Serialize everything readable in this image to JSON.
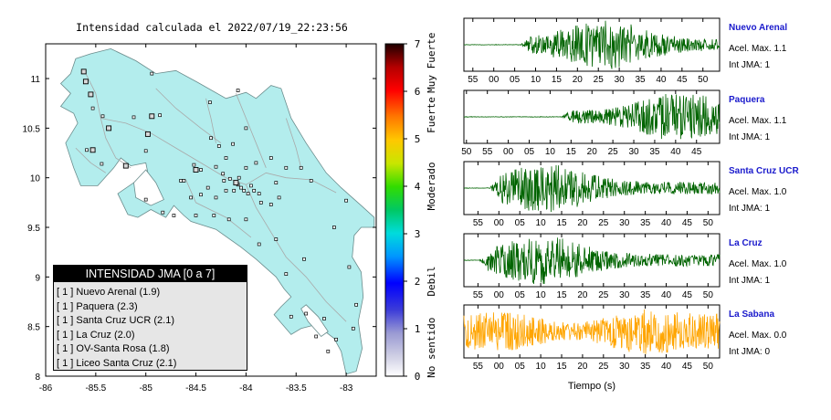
{
  "map_title": "Intensidad calculada el 2022/07/19_22:23:56",
  "map": {
    "lon_ticks": [
      "-86",
      "-85.5",
      "-85",
      "-84.5",
      "-84",
      "-83.5",
      "-83"
    ],
    "lon_values": [
      -86,
      -85.5,
      -85,
      -84.5,
      -84,
      -83.5,
      -83
    ],
    "lat_ticks": [
      "11",
      "10.5",
      "10",
      "9.5",
      "9",
      "8.5",
      "8"
    ],
    "lat_values": [
      11,
      10.5,
      10,
      9.5,
      9,
      8.5,
      8
    ],
    "lon_range": [
      -86.0,
      -82.7
    ],
    "lat_range": [
      8.0,
      11.35
    ],
    "land_color": "#b3eded",
    "road_color": "#a9a9a9",
    "stations": [
      [
        -85.37,
        10.5
      ],
      [
        -85.43,
        10.62
      ],
      [
        -85.53,
        10.7
      ],
      [
        -85.55,
        10.84
      ],
      [
        -85.6,
        10.97
      ],
      [
        -85.62,
        11.07
      ],
      [
        -85.59,
        10.28
      ],
      [
        -85.44,
        10.14
      ],
      [
        -85.2,
        10.12
      ],
      [
        -84.98,
        10.44
      ],
      [
        -85.0,
        10.27
      ],
      [
        -85.12,
        10.61
      ],
      [
        -84.86,
        10.63
      ],
      [
        -84.94,
        11.05
      ],
      [
        -84.35,
        10.4
      ],
      [
        -84.08,
        10.88
      ],
      [
        -84.36,
        10.76
      ],
      [
        -84.0,
        10.5
      ],
      [
        -84.13,
        10.34
      ],
      [
        -84.27,
        10.32
      ],
      [
        -84.3,
        10.11
      ],
      [
        -84.2,
        10.2
      ],
      [
        -84.45,
        10.08
      ],
      [
        -84.52,
        10.13
      ],
      [
        -84.23,
        10.04
      ],
      [
        -84.22,
        9.97
      ],
      [
        -84.2,
        9.87
      ],
      [
        -84.16,
        9.99
      ],
      [
        -84.1,
        9.95
      ],
      [
        -84.08,
        9.93
      ],
      [
        -84.05,
        9.9
      ],
      [
        -84.02,
        9.87
      ],
      [
        -83.98,
        9.84
      ],
      [
        -83.95,
        9.92
      ],
      [
        -84.12,
        9.87
      ],
      [
        -84.07,
        10.0
      ],
      [
        -83.92,
        9.87
      ],
      [
        -83.87,
        9.84
      ],
      [
        -84.0,
        10.1
      ],
      [
        -83.9,
        10.15
      ],
      [
        -83.75,
        10.2
      ],
      [
        -83.6,
        10.1
      ],
      [
        -83.45,
        10.1
      ],
      [
        -83.7,
        9.95
      ],
      [
        -83.67,
        9.8
      ],
      [
        -83.75,
        9.73
      ],
      [
        -83.85,
        9.75
      ],
      [
        -84.3,
        9.8
      ],
      [
        -84.38,
        9.9
      ],
      [
        -84.62,
        9.97
      ],
      [
        -84.55,
        9.8
      ],
      [
        -84.72,
        9.62
      ],
      [
        -84.83,
        9.65
      ],
      [
        -85.0,
        9.78
      ],
      [
        -84.5,
        9.62
      ],
      [
        -84.32,
        9.62
      ],
      [
        -84.17,
        9.58
      ],
      [
        -84.0,
        9.58
      ],
      [
        -83.7,
        9.38
      ],
      [
        -83.87,
        9.33
      ],
      [
        -83.6,
        9.03
      ],
      [
        -83.42,
        9.18
      ],
      [
        -83.55,
        8.6
      ],
      [
        -83.4,
        8.63
      ],
      [
        -83.22,
        8.58
      ],
      [
        -83.3,
        8.4
      ],
      [
        -83.18,
        8.25
      ],
      [
        -83.1,
        8.37
      ],
      [
        -82.93,
        8.48
      ],
      [
        -82.9,
        8.72
      ],
      [
        -82.97,
        9.1
      ],
      [
        -83.12,
        9.5
      ],
      [
        -83.0,
        9.77
      ],
      [
        -83.35,
        9.97
      ],
      [
        -84.65,
        9.97
      ],
      [
        -84.45,
        9.83
      ]
    ],
    "active_stations": [
      [
        -85.62,
        11.07
      ],
      [
        -85.6,
        10.97
      ],
      [
        -84.94,
        10.62
      ],
      [
        -85.55,
        10.84
      ],
      [
        -85.37,
        10.5
      ],
      [
        -85.53,
        10.28
      ],
      [
        -85.2,
        10.12
      ],
      [
        -84.5,
        10.08
      ],
      [
        -84.1,
        9.95
      ],
      [
        -84.98,
        10.44
      ]
    ]
  },
  "colorbar": {
    "tick_labels": [
      "0",
      "1",
      "2",
      "3",
      "4",
      "5",
      "6",
      "7"
    ],
    "tick_values": [
      0,
      1,
      2,
      3,
      4,
      5,
      6,
      7
    ],
    "category_labels": [
      "No sentido",
      "Debil",
      "Moderado",
      "Fuerte",
      "Muy Fuerte"
    ],
    "category_positions": [
      0.6,
      2.0,
      4.0,
      5.5,
      6.6
    ]
  },
  "legend": {
    "header": "INTENSIDAD JMA [0 a 7]",
    "items": [
      "[ 1 ]  Nuevo Arenal (1.9)",
      "[ 1 ]  Paquera (2.3)",
      "[ 1 ]  Santa Cruz UCR (2.1)",
      "[ 1 ]  La Cruz (2.0)",
      "[ 1 ]  OV-Santa Rosa (1.8)",
      "[ 1 ]  Liceo Santa Cruz (2.1)"
    ]
  },
  "waveforms": {
    "x_axis_label": "Tiempo (s)",
    "panels": [
      {
        "station": "Nuevo Arenal",
        "accel": "Acel. Max. 1.1",
        "jma": "Int JMA: 1",
        "color": "#006400",
        "ticks": [
          "55",
          "00",
          "05",
          "10",
          "15",
          "20",
          "25",
          "30",
          "35",
          "40",
          "45",
          "50"
        ],
        "tick_start": 0.035,
        "tick_step": 0.0818,
        "onset": 0.22,
        "peak": 0.55
      },
      {
        "station": "Paquera",
        "accel": "Acel. Max. 1.1",
        "jma": "Int JMA: 1",
        "color": "#006400",
        "ticks": [
          "50",
          "55",
          "00",
          "05",
          "10",
          "15",
          "20",
          "25",
          "30",
          "35",
          "40",
          "45"
        ],
        "tick_start": 0.01,
        "tick_step": 0.0818,
        "onset": 0.38,
        "peak": 0.85
      },
      {
        "station": "Santa Cruz UCR",
        "accel": "Acel. Max. 1.0",
        "jma": "Int JMA: 1",
        "color": "#006400",
        "ticks": [
          "55",
          "00",
          "05",
          "10",
          "15",
          "20",
          "25",
          "30",
          "35",
          "40",
          "45",
          "50"
        ],
        "tick_start": 0.055,
        "tick_step": 0.0818,
        "onset": 0.1,
        "peak": 0.32
      },
      {
        "station": "La Cruz",
        "accel": "Acel. Max. 1.0",
        "jma": "Int JMA: 1",
        "color": "#006400",
        "ticks": [
          "55",
          "00",
          "05",
          "10",
          "15",
          "20",
          "25",
          "30",
          "35",
          "40",
          "45",
          "50"
        ],
        "tick_start": 0.055,
        "tick_step": 0.0818,
        "onset": 0.06,
        "peak": 0.3
      },
      {
        "station": "La Sabana",
        "accel": "Acel. Max. 0.0",
        "jma": "Int JMA: 0",
        "color": "#ffa500",
        "ticks": [
          "55",
          "00",
          "05",
          "10",
          "15",
          "20",
          "25",
          "30",
          "35",
          "40",
          "45",
          "50"
        ],
        "tick_start": 0.055,
        "tick_step": 0.0818,
        "onset": 0.0,
        "peak": 0.55
      }
    ]
  }
}
